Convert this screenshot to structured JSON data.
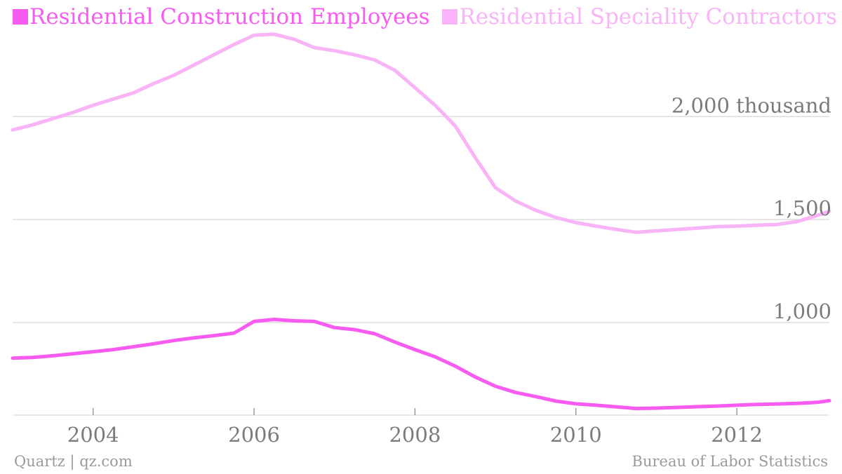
{
  "legend": {
    "items": [
      {
        "label": "Residential Construction Employees",
        "color": "#f75bf0"
      },
      {
        "label": "Residential Speciality Contractors",
        "color": "#f9b4f7"
      }
    ]
  },
  "footer": {
    "source_left": "Quartz | qz.com",
    "source_right": "Bureau of Labor Statistics"
  },
  "chart_data": {
    "type": "line",
    "title": "",
    "xlabel": "",
    "ylabel": "",
    "xlim": [
      2003.0,
      2013.15
    ],
    "ylim": [
      550,
      2430
    ],
    "x_ticks": [
      2004,
      2006,
      2008,
      2010,
      2012
    ],
    "x_tick_labels": [
      "2004",
      "2006",
      "2008",
      "2010",
      "2012"
    ],
    "y_ticks": [
      1000,
      1500,
      2000
    ],
    "y_tick_labels": [
      "1,000",
      "1,500",
      "2,000 thousand"
    ],
    "grid": true,
    "legend_position": "top-left",
    "series": [
      {
        "name": "Residential Construction Employees",
        "color": "#f75bf0",
        "points": [
          [
            2003.0,
            827
          ],
          [
            2003.25,
            830
          ],
          [
            2003.5,
            838
          ],
          [
            2003.75,
            848
          ],
          [
            2004.0,
            858
          ],
          [
            2004.25,
            868
          ],
          [
            2004.5,
            882
          ],
          [
            2004.75,
            896
          ],
          [
            2005.0,
            912
          ],
          [
            2005.25,
            925
          ],
          [
            2005.5,
            936
          ],
          [
            2005.75,
            948
          ],
          [
            2006.0,
            1005
          ],
          [
            2006.25,
            1015
          ],
          [
            2006.5,
            1008
          ],
          [
            2006.75,
            1005
          ],
          [
            2007.0,
            975
          ],
          [
            2007.25,
            965
          ],
          [
            2007.5,
            945
          ],
          [
            2007.75,
            905
          ],
          [
            2008.0,
            868
          ],
          [
            2008.25,
            833
          ],
          [
            2008.5,
            788
          ],
          [
            2008.75,
            735
          ],
          [
            2009.0,
            690
          ],
          [
            2009.25,
            660
          ],
          [
            2009.5,
            640
          ],
          [
            2009.75,
            618
          ],
          [
            2010.0,
            605
          ],
          [
            2010.25,
            598
          ],
          [
            2010.5,
            590
          ],
          [
            2010.75,
            582
          ],
          [
            2011.0,
            584
          ],
          [
            2011.25,
            587
          ],
          [
            2011.5,
            591
          ],
          [
            2011.75,
            594
          ],
          [
            2012.0,
            598
          ],
          [
            2012.25,
            602
          ],
          [
            2012.5,
            604
          ],
          [
            2012.75,
            607
          ],
          [
            2013.0,
            612
          ],
          [
            2013.15,
            620
          ]
        ]
      },
      {
        "name": "Residential Speciality Contractors",
        "color": "#f9b4f7",
        "points": [
          [
            2003.0,
            1935
          ],
          [
            2003.25,
            1960
          ],
          [
            2003.5,
            1990
          ],
          [
            2003.75,
            2020
          ],
          [
            2004.0,
            2055
          ],
          [
            2004.25,
            2085
          ],
          [
            2004.5,
            2115
          ],
          [
            2004.75,
            2160
          ],
          [
            2005.0,
            2200
          ],
          [
            2005.25,
            2250
          ],
          [
            2005.5,
            2300
          ],
          [
            2005.75,
            2350
          ],
          [
            2006.0,
            2395
          ],
          [
            2006.25,
            2400
          ],
          [
            2006.5,
            2375
          ],
          [
            2006.75,
            2335
          ],
          [
            2007.0,
            2320
          ],
          [
            2007.25,
            2300
          ],
          [
            2007.5,
            2275
          ],
          [
            2007.75,
            2225
          ],
          [
            2008.0,
            2140
          ],
          [
            2008.25,
            2055
          ],
          [
            2008.5,
            1955
          ],
          [
            2008.75,
            1800
          ],
          [
            2009.0,
            1655
          ],
          [
            2009.25,
            1590
          ],
          [
            2009.5,
            1545
          ],
          [
            2009.75,
            1510
          ],
          [
            2010.0,
            1485
          ],
          [
            2010.25,
            1468
          ],
          [
            2010.5,
            1452
          ],
          [
            2010.75,
            1438
          ],
          [
            2011.0,
            1445
          ],
          [
            2011.25,
            1452
          ],
          [
            2011.5,
            1458
          ],
          [
            2011.75,
            1465
          ],
          [
            2012.0,
            1468
          ],
          [
            2012.25,
            1472
          ],
          [
            2012.5,
            1476
          ],
          [
            2012.75,
            1490
          ],
          [
            2013.0,
            1520
          ],
          [
            2013.15,
            1540
          ]
        ]
      }
    ]
  }
}
